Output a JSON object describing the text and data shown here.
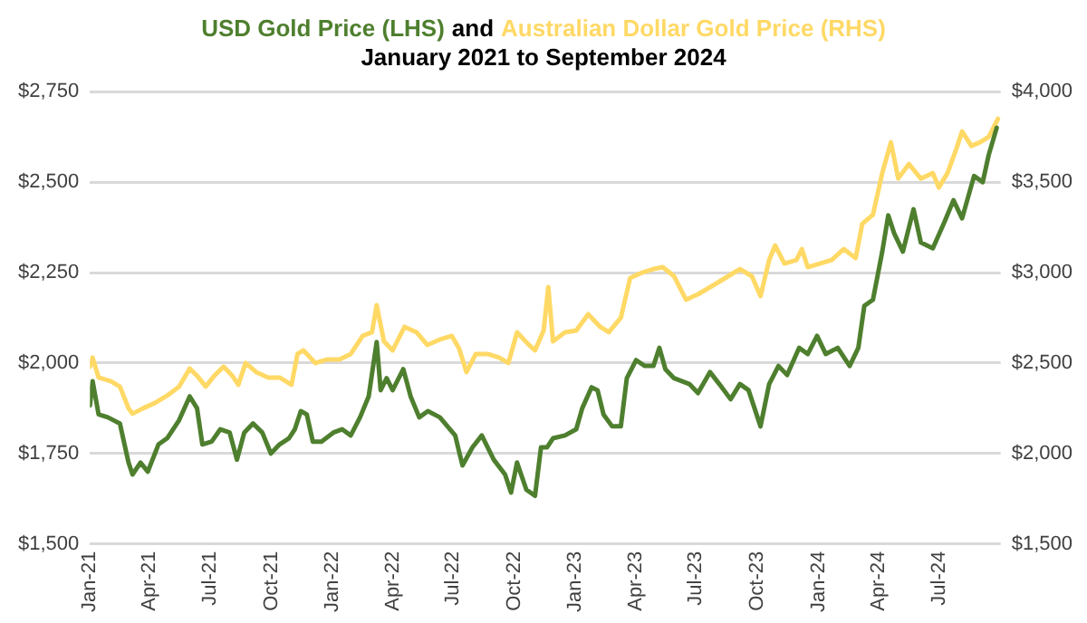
{
  "chart_data": {
    "type": "line",
    "title": "and",
    "subtitle": "January 2021 to September 2024",
    "legend": false,
    "grid": "y",
    "marker": "none",
    "line_style": "solid",
    "xlim": [
      "2021-01-01",
      "2024-10-01"
    ],
    "xticks": [
      {
        "value": "2021-01-01",
        "label": "Jan-21"
      },
      {
        "value": "2021-04-01",
        "label": "Apr-21"
      },
      {
        "value": "2021-07-01",
        "label": "Jul-21"
      },
      {
        "value": "2021-10-01",
        "label": "Oct-21"
      },
      {
        "value": "2022-01-01",
        "label": "Jan-22"
      },
      {
        "value": "2022-04-01",
        "label": "Apr-22"
      },
      {
        "value": "2022-07-01",
        "label": "Jul-22"
      },
      {
        "value": "2022-10-01",
        "label": "Oct-22"
      },
      {
        "value": "2023-01-01",
        "label": "Jan-23"
      },
      {
        "value": "2023-04-01",
        "label": "Apr-23"
      },
      {
        "value": "2023-07-01",
        "label": "Jul-23"
      },
      {
        "value": "2023-10-01",
        "label": "Oct-23"
      },
      {
        "value": "2024-01-01",
        "label": "Jan-24"
      },
      {
        "value": "2024-04-01",
        "label": "Apr-24"
      },
      {
        "value": "2024-07-01",
        "label": "Jul-24"
      }
    ],
    "ylim": [
      1500,
      2750
    ],
    "yticks": [
      {
        "value": 1500,
        "label": "$1,500"
      },
      {
        "value": 1750,
        "label": "$1,750"
      },
      {
        "value": 2000,
        "label": "$2,000"
      },
      {
        "value": 2250,
        "label": "$2,250"
      },
      {
        "value": 2500,
        "label": "$2,500"
      },
      {
        "value": 2750,
        "label": "$2,750"
      }
    ],
    "y2lim": [
      1500,
      4000
    ],
    "y2ticks": [
      {
        "value": 1500,
        "label": "$1,500"
      },
      {
        "value": 2000,
        "label": "$2,000"
      },
      {
        "value": 2500,
        "label": "$2,500"
      },
      {
        "value": 3000,
        "label": "$3,000"
      },
      {
        "value": 3500,
        "label": "$3,500"
      },
      {
        "value": 4000,
        "label": "$4,000"
      }
    ],
    "series": [
      {
        "name": "USD Gold Price (LHS)",
        "color": "#4e7f2e",
        "axis": "y",
        "x": [
          "2021-01-01",
          "2021-01-05",
          "2021-01-14",
          "2021-01-28",
          "2021-02-15",
          "2021-02-28",
          "2021-03-06",
          "2021-03-18",
          "2021-03-29",
          "2021-04-14",
          "2021-04-27",
          "2021-05-15",
          "2021-05-31",
          "2021-06-11",
          "2021-06-19",
          "2021-07-03",
          "2021-07-16",
          "2021-07-30",
          "2021-08-10",
          "2021-08-21",
          "2021-09-03",
          "2021-09-17",
          "2021-09-30",
          "2021-10-13",
          "2021-10-27",
          "2021-11-05",
          "2021-11-14",
          "2021-11-23",
          "2021-12-02",
          "2021-12-15",
          "2022-01-02",
          "2022-01-15",
          "2022-01-28",
          "2022-02-11",
          "2022-02-24",
          "2022-03-08",
          "2022-03-14",
          "2022-03-23",
          "2022-04-01",
          "2022-04-17",
          "2022-04-28",
          "2022-05-11",
          "2022-05-24",
          "2022-06-11",
          "2022-07-04",
          "2022-07-15",
          "2022-07-30",
          "2022-08-13",
          "2022-08-31",
          "2022-09-17",
          "2022-09-26",
          "2022-10-05",
          "2022-10-19",
          "2022-11-01",
          "2022-11-10",
          "2022-11-19",
          "2022-11-28",
          "2022-12-16",
          "2023-01-02",
          "2023-01-11",
          "2023-01-25",
          "2023-02-03",
          "2023-02-12",
          "2023-02-25",
          "2023-03-10",
          "2023-03-19",
          "2023-04-02",
          "2023-04-15",
          "2023-04-28",
          "2023-05-07",
          "2023-05-16",
          "2023-05-29",
          "2023-06-21",
          "2023-07-04",
          "2023-07-22",
          "2023-08-05",
          "2023-08-22",
          "2023-09-05",
          "2023-09-18",
          "2023-10-06",
          "2023-10-19",
          "2023-11-02",
          "2023-11-15",
          "2023-12-03",
          "2023-12-16",
          "2023-12-30",
          "2024-01-12",
          "2024-01-30",
          "2024-02-17",
          "2024-03-01",
          "2024-03-10",
          "2024-03-23",
          "2024-04-06",
          "2024-04-15",
          "2024-04-24",
          "2024-05-07",
          "2024-05-23",
          "2024-06-03",
          "2024-06-21",
          "2024-07-09",
          "2024-07-22",
          "2024-08-04",
          "2024-08-22",
          "2024-09-04",
          "2024-09-13",
          "2024-09-25"
        ],
        "values": [
          1883,
          1950,
          1858,
          1850,
          1833,
          1725,
          1692,
          1725,
          1700,
          1775,
          1792,
          1842,
          1908,
          1875,
          1775,
          1783,
          1817,
          1808,
          1733,
          1808,
          1833,
          1808,
          1750,
          1775,
          1792,
          1817,
          1867,
          1858,
          1783,
          1783,
          1808,
          1817,
          1800,
          1850,
          1908,
          2058,
          1925,
          1958,
          1925,
          1983,
          1908,
          1850,
          1867,
          1850,
          1800,
          1717,
          1767,
          1800,
          1733,
          1692,
          1642,
          1725,
          1650,
          1633,
          1767,
          1767,
          1792,
          1800,
          1817,
          1875,
          1933,
          1925,
          1858,
          1825,
          1825,
          1958,
          2008,
          1992,
          1992,
          2042,
          1983,
          1958,
          1942,
          1917,
          1975,
          1942,
          1900,
          1942,
          1925,
          1825,
          1942,
          1992,
          1967,
          2042,
          2025,
          2075,
          2025,
          2042,
          1992,
          2042,
          2158,
          2175,
          2308,
          2408,
          2358,
          2308,
          2425,
          2333,
          2317,
          2392,
          2450,
          2400,
          2517,
          2500,
          2575,
          2650
        ]
      },
      {
        "name": "Australian Dollar Gold Price (RHS)",
        "color": "#ffd966",
        "axis": "y2",
        "x": [
          "2021-01-01",
          "2021-01-05",
          "2021-01-14",
          "2021-02-01",
          "2021-02-15",
          "2021-02-28",
          "2021-03-06",
          "2021-03-22",
          "2021-04-09",
          "2021-04-27",
          "2021-05-15",
          "2021-05-31",
          "2021-06-11",
          "2021-06-24",
          "2021-07-07",
          "2021-07-21",
          "2021-08-03",
          "2021-08-12",
          "2021-08-23",
          "2021-09-08",
          "2021-09-26",
          "2021-10-13",
          "2021-10-31",
          "2021-11-09",
          "2021-11-18",
          "2021-12-06",
          "2021-12-24",
          "2022-01-11",
          "2022-01-28",
          "2022-02-15",
          "2022-03-01",
          "2022-03-08",
          "2022-03-19",
          "2022-04-01",
          "2022-04-19",
          "2022-05-07",
          "2022-05-23",
          "2022-06-11",
          "2022-06-29",
          "2022-07-10",
          "2022-07-21",
          "2022-08-04",
          "2022-08-22",
          "2022-09-08",
          "2022-09-22",
          "2022-10-05",
          "2022-10-23",
          "2022-11-01",
          "2022-11-14",
          "2022-11-21",
          "2022-11-28",
          "2022-12-16",
          "2023-01-02",
          "2023-01-20",
          "2023-02-07",
          "2023-02-20",
          "2023-03-10",
          "2023-03-24",
          "2023-04-11",
          "2023-04-28",
          "2023-05-12",
          "2023-05-29",
          "2023-06-16",
          "2023-07-04",
          "2023-07-27",
          "2023-08-14",
          "2023-09-05",
          "2023-09-23",
          "2023-10-06",
          "2023-10-19",
          "2023-10-28",
          "2023-11-11",
          "2023-11-29",
          "2023-12-07",
          "2023-12-16",
          "2024-01-03",
          "2024-01-21",
          "2024-02-08",
          "2024-02-26",
          "2024-03-07",
          "2024-03-23",
          "2024-04-06",
          "2024-04-19",
          "2024-04-30",
          "2024-05-16",
          "2024-06-03",
          "2024-06-21",
          "2024-06-30",
          "2024-07-13",
          "2024-07-26",
          "2024-08-04",
          "2024-08-18",
          "2024-08-31",
          "2024-09-13",
          "2024-09-27"
        ],
        "values": [
          2480,
          2530,
          2420,
          2400,
          2370,
          2250,
          2220,
          2250,
          2280,
          2320,
          2370,
          2470,
          2430,
          2370,
          2430,
          2480,
          2430,
          2380,
          2500,
          2450,
          2420,
          2420,
          2380,
          2550,
          2570,
          2500,
          2520,
          2520,
          2550,
          2650,
          2670,
          2820,
          2620,
          2570,
          2700,
          2670,
          2600,
          2630,
          2650,
          2580,
          2450,
          2550,
          2550,
          2530,
          2500,
          2670,
          2600,
          2570,
          2680,
          2920,
          2620,
          2670,
          2680,
          2770,
          2700,
          2670,
          2750,
          2970,
          3000,
          3020,
          3030,
          2980,
          2850,
          2880,
          2930,
          2970,
          3020,
          2980,
          2870,
          3070,
          3150,
          3050,
          3070,
          3130,
          3030,
          3050,
          3070,
          3130,
          3080,
          3270,
          3320,
          3550,
          3720,
          3520,
          3600,
          3520,
          3550,
          3470,
          3550,
          3680,
          3780,
          3700,
          3720,
          3750,
          3850
        ]
      }
    ]
  }
}
